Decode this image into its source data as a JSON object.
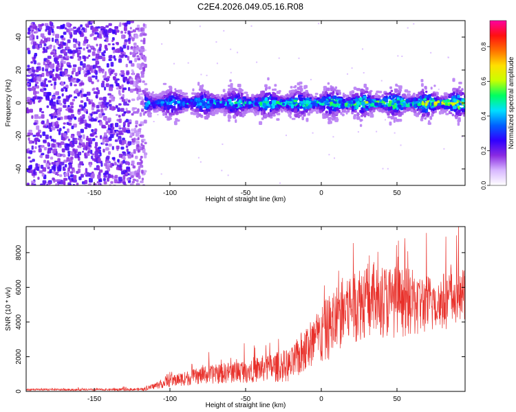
{
  "title": "C2E4.2026.049.05.16.R08",
  "chart_data": [
    {
      "type": "heatmap",
      "xlabel": "Height of straight line (km)",
      "ylabel": "Frequency (Hz)",
      "xlim": [
        -195,
        95
      ],
      "ylim": [
        -50,
        50
      ],
      "x_ticks": [
        -150,
        -100,
        -50,
        0,
        50
      ],
      "y_ticks": [
        -40,
        -20,
        0,
        20,
        40
      ],
      "grid": false,
      "colorbar": {
        "label": "Normalized spectral amplitude",
        "range": [
          0.0,
          0.95
        ],
        "ticks": [
          0.0,
          0.2,
          0.4,
          0.6,
          0.8
        ],
        "colormap": [
          "#ffffff",
          "#d8b8ff",
          "#8a2be2",
          "#3000ff",
          "#0060ff",
          "#00e0ff",
          "#00ff60",
          "#c8ff00",
          "#ffe000",
          "#ff7000",
          "#ff1010",
          "#ff00a0"
        ]
      },
      "regions": [
        {
          "x_range": [
            -195,
            -117
          ],
          "description_kind": "broadband noise",
          "y_range": [
            -50,
            50
          ],
          "mean_amplitude": 0.08
        },
        {
          "x_range": [
            -117,
            95
          ],
          "description_kind": "signal band",
          "y_center": 0,
          "y_half_width": 7,
          "mean_amplitude": 0.3
        }
      ]
    },
    {
      "type": "line",
      "xlabel": "Height of straight line (km)",
      "ylabel": "SNR (10 * v/v)",
      "xlim": [
        -195,
        95
      ],
      "ylim": [
        0,
        9500
      ],
      "x_ticks": [
        -150,
        -100,
        -50,
        0,
        50
      ],
      "y_ticks": [
        0,
        2000,
        4000,
        6000,
        8000
      ],
      "grid": false,
      "series": [
        {
          "color": "#e8302a",
          "envelope_x": [
            -195,
            -150,
            -117,
            -100,
            -80,
            -60,
            -40,
            -20,
            -10,
            0,
            10,
            20,
            30,
            50,
            70,
            95
          ],
          "envelope_mean": [
            100,
            100,
            120,
            600,
            900,
            1100,
            1300,
            1500,
            2500,
            3200,
            4200,
            5000,
            5300,
            5200,
            5000,
            5500
          ],
          "envelope_amplitude": [
            80,
            80,
            120,
            500,
            700,
            900,
            1100,
            1400,
            2000,
            2500,
            2900,
            3200,
            3200,
            3000,
            2500,
            2300
          ]
        }
      ]
    }
  ]
}
